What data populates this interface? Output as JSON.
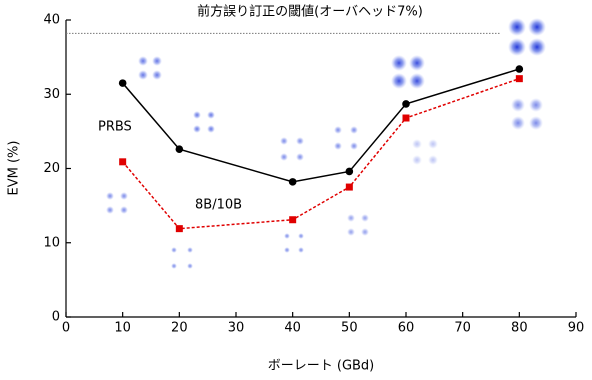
{
  "chart_data": {
    "type": "line",
    "x_label": "ボーレート (GBd)",
    "y_label": "EVM (%)",
    "xlim": [
      0,
      90
    ],
    "xticks": [
      0,
      10,
      20,
      30,
      40,
      50,
      60,
      70,
      80,
      90
    ],
    "ylim": [
      0,
      40
    ],
    "yticks": [
      0,
      10,
      20,
      30,
      40
    ],
    "threshold": {
      "label": "前方誤り訂正の閾値(オーバヘッド7%)",
      "y": 38.2,
      "x": [
        0,
        76.5
      ],
      "color": "#777777"
    },
    "x": [
      10,
      20,
      40,
      50,
      60,
      80
    ],
    "series": [
      {
        "name": "PRBS",
        "color": "#000000",
        "marker": "circle",
        "dashed": false,
        "values": [
          31.5,
          22.6,
          18.2,
          19.6,
          28.7,
          33.4
        ]
      },
      {
        "name": "8B/10B",
        "color": "#e00000",
        "marker": "square",
        "dashed": true,
        "values": [
          20.9,
          11.9,
          13.1,
          17.5,
          26.8,
          32.1
        ]
      }
    ]
  }
}
